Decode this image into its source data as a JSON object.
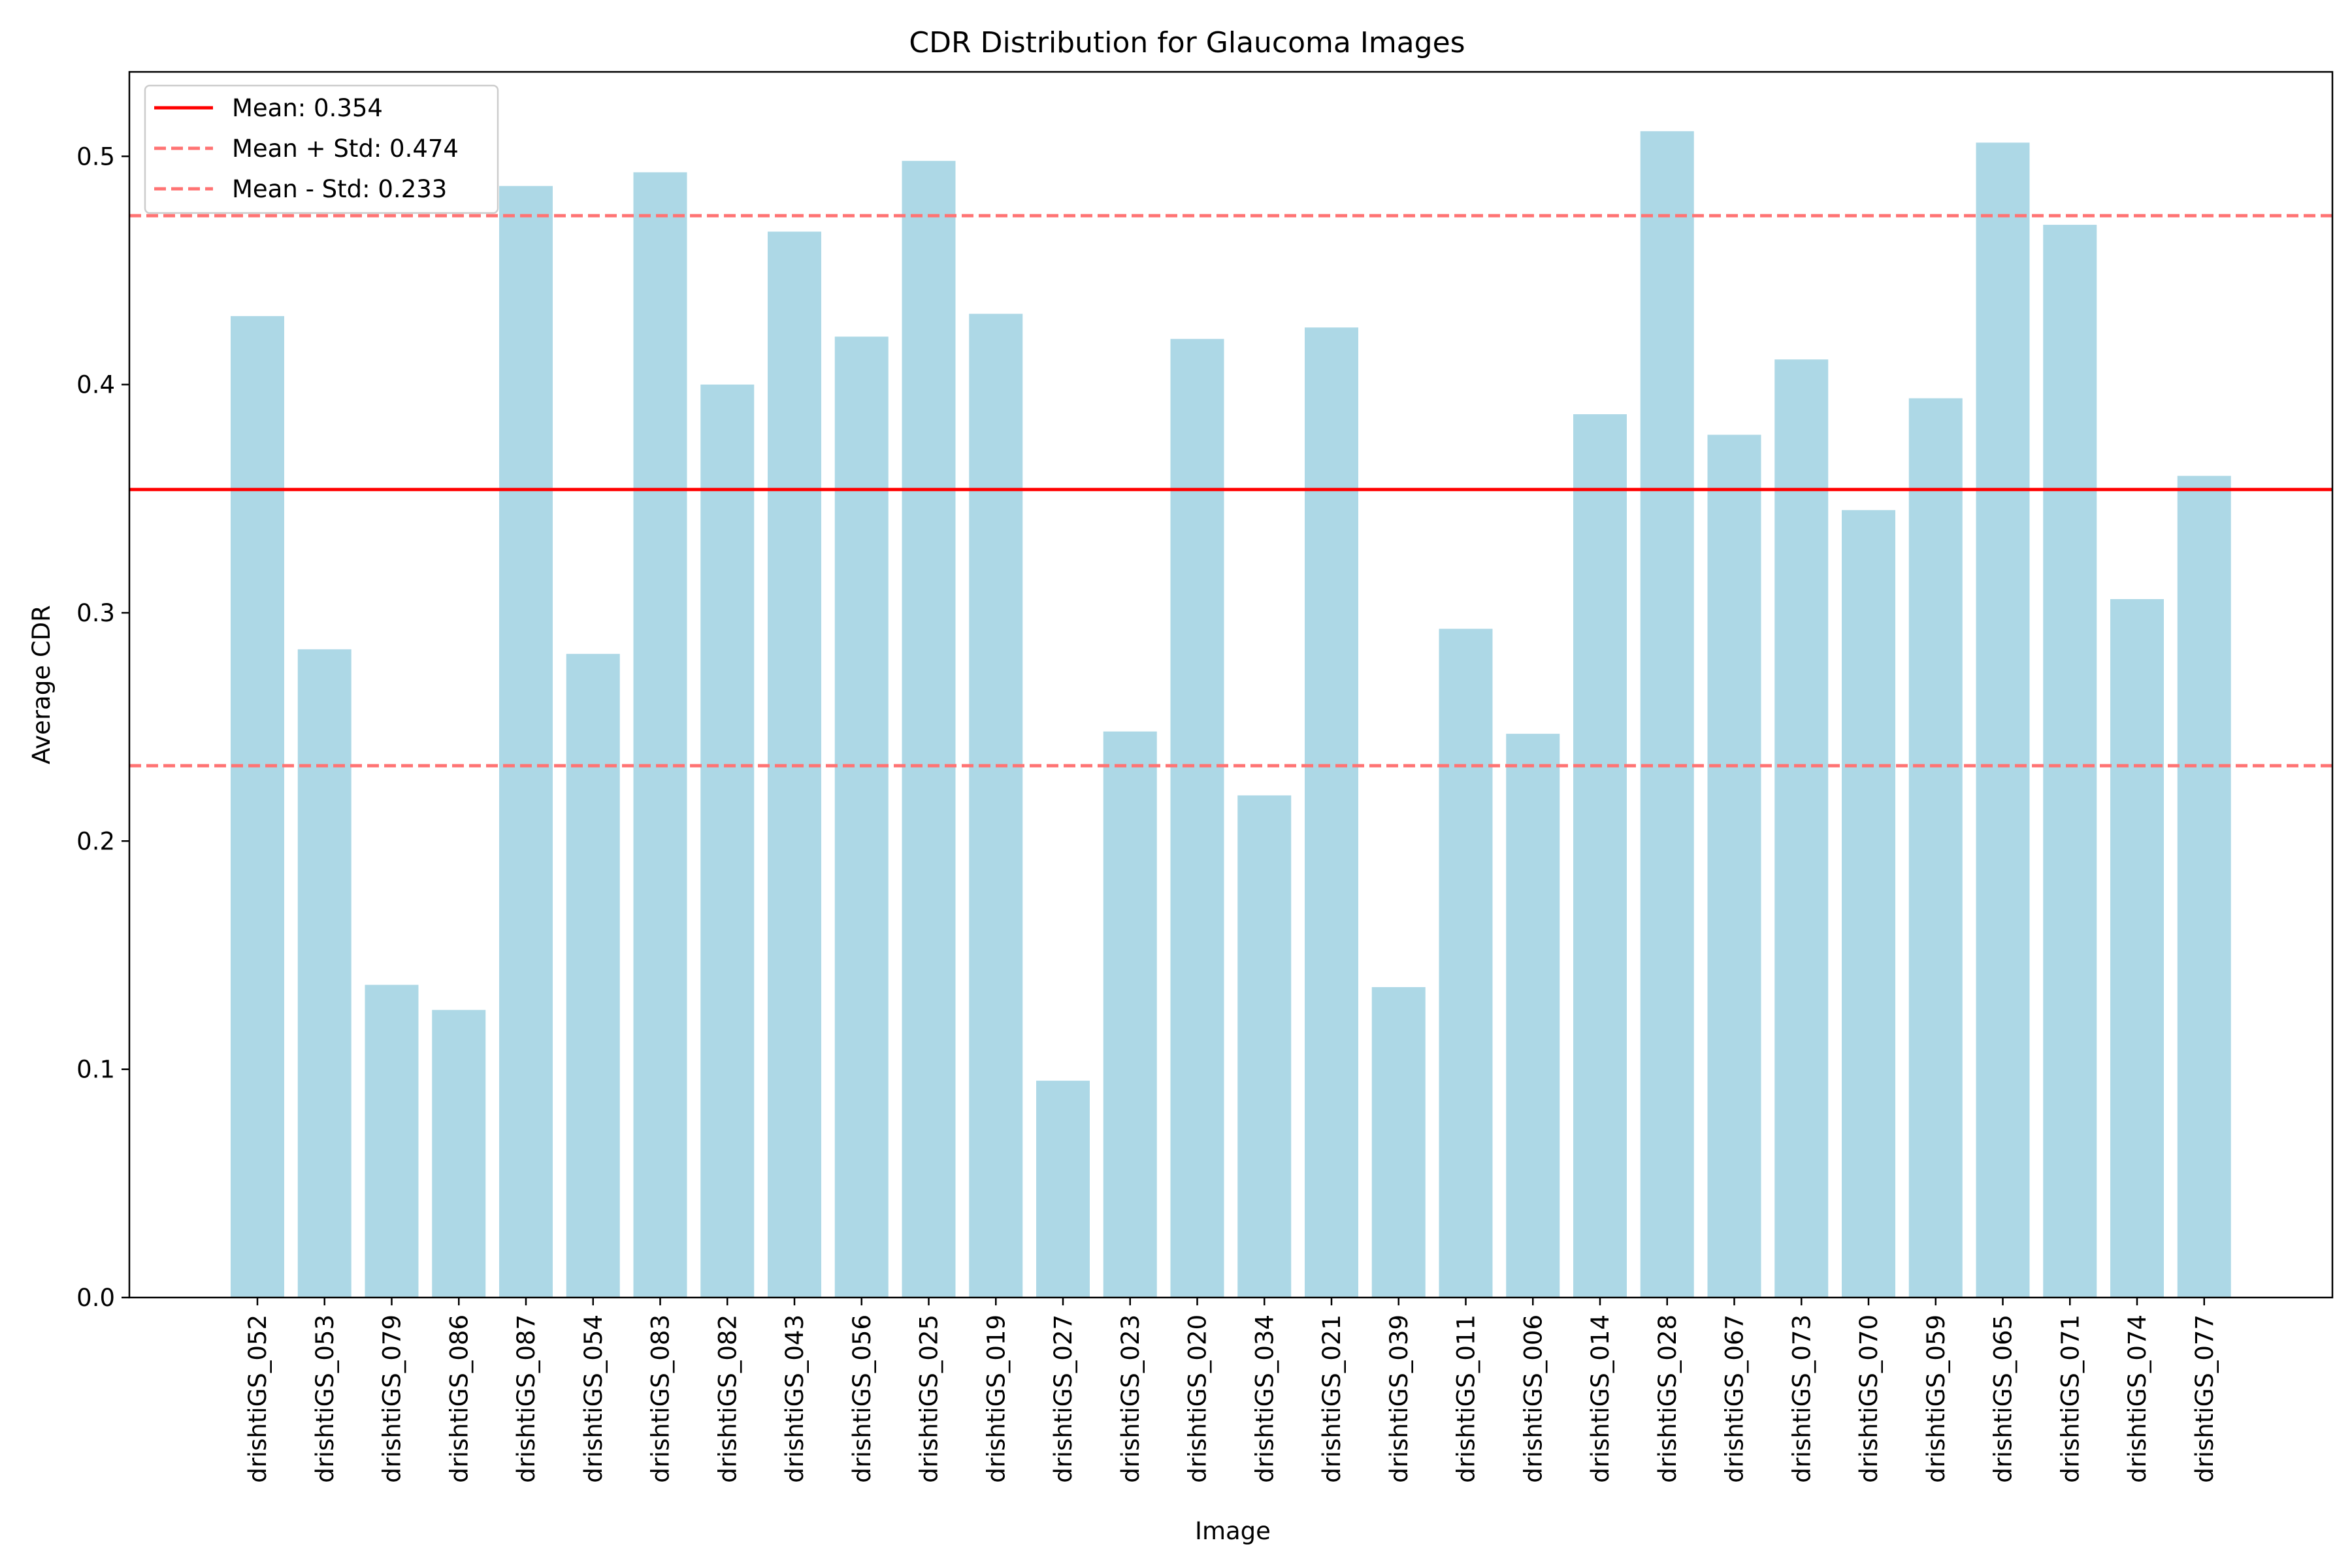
{
  "chart_data": {
    "type": "bar",
    "title": "CDR Distribution for Glaucoma Images",
    "xlabel": "Image",
    "ylabel": "Average CDR",
    "ylim": [
      0,
      0.537
    ],
    "yticks": [
      0.0,
      0.1,
      0.2,
      0.3,
      0.4,
      0.5
    ],
    "ytick_labels": [
      "0.0",
      "0.1",
      "0.2",
      "0.3",
      "0.4",
      "0.5"
    ],
    "categories": [
      "drishtiGS_052",
      "drishtiGS_053",
      "drishtiGS_079",
      "drishtiGS_086",
      "drishtiGS_087",
      "drishtiGS_054",
      "drishtiGS_083",
      "drishtiGS_082",
      "drishtiGS_043",
      "drishtiGS_056",
      "drishtiGS_025",
      "drishtiGS_019",
      "drishtiGS_027",
      "drishtiGS_023",
      "drishtiGS_020",
      "drishtiGS_034",
      "drishtiGS_021",
      "drishtiGS_039",
      "drishtiGS_011",
      "drishtiGS_006",
      "drishtiGS_014",
      "drishtiGS_028",
      "drishtiGS_067",
      "drishtiGS_073",
      "drishtiGS_070",
      "drishtiGS_059",
      "drishtiGS_065",
      "drishtiGS_071",
      "drishtiGS_074",
      "drishtiGS_077"
    ],
    "values": [
      0.43,
      0.284,
      0.137,
      0.126,
      0.487,
      0.282,
      0.493,
      0.4,
      0.467,
      0.421,
      0.498,
      0.431,
      0.095,
      0.248,
      0.42,
      0.22,
      0.425,
      0.136,
      0.293,
      0.247,
      0.387,
      0.511,
      0.378,
      0.411,
      0.345,
      0.394,
      0.506,
      0.47,
      0.306,
      0.36
    ],
    "bar_color": "#add8e6",
    "reference_lines": [
      {
        "label": "Mean: 0.354",
        "value": 0.354,
        "style": "solid",
        "color": "#ff0000"
      },
      {
        "label": "Mean + Std: 0.474",
        "value": 0.474,
        "style": "dashed",
        "color": "#ff7373"
      },
      {
        "label": "Mean - Std: 0.233",
        "value": 0.233,
        "style": "dashed",
        "color": "#ff7373"
      }
    ],
    "legend_position": "top-left",
    "grid": false
  }
}
